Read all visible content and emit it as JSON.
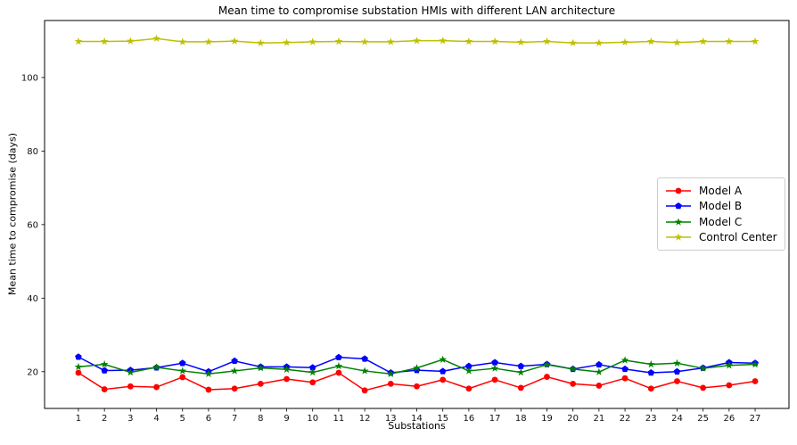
{
  "chart_data": {
    "type": "line",
    "title": "Mean time to compromise substation HMIs with different LAN architecture",
    "xlabel": "Substations",
    "ylabel": "Mean time to compromise (days)",
    "x": [
      1,
      2,
      3,
      4,
      5,
      6,
      7,
      8,
      9,
      10,
      11,
      12,
      13,
      14,
      15,
      16,
      17,
      18,
      19,
      20,
      21,
      22,
      23,
      24,
      25,
      26,
      27
    ],
    "xlim": [
      -0.3,
      28.3
    ],
    "ylim": [
      10,
      115.5
    ],
    "yticks": [
      20,
      40,
      60,
      80,
      100
    ],
    "grid": false,
    "legend_position": "center right",
    "legend_edge_color": "#cccccc",
    "background_color": "#ffffff",
    "axis_color": "#000000",
    "series": [
      {
        "name": "Model A",
        "color": "#ff0000",
        "marker": "circle",
        "values": [
          19.7,
          15.2,
          16.0,
          15.8,
          18.5,
          15.1,
          15.4,
          16.7,
          18.0,
          17.1,
          19.7,
          14.9,
          16.7,
          16.0,
          17.8,
          15.4,
          17.8,
          15.6,
          18.6,
          16.7,
          16.2,
          18.2,
          15.4,
          17.4,
          15.6,
          16.3,
          17.4
        ]
      },
      {
        "name": "Model B",
        "color": "#0000ff",
        "marker": "pentagon",
        "values": [
          24.0,
          20.3,
          20.4,
          21.1,
          22.3,
          20.0,
          22.9,
          21.3,
          21.3,
          21.1,
          23.9,
          23.5,
          19.7,
          20.4,
          20.1,
          21.5,
          22.5,
          21.5,
          22.0,
          20.7,
          21.9,
          20.7,
          19.7,
          20.0,
          21.0,
          22.5,
          22.3
        ]
      },
      {
        "name": "Model C",
        "color": "#008000",
        "marker": "star",
        "values": [
          21.3,
          22.0,
          19.8,
          21.2,
          20.2,
          19.4,
          20.2,
          21.0,
          20.6,
          19.8,
          21.5,
          20.2,
          19.4,
          21.0,
          23.3,
          20.2,
          20.9,
          19.8,
          21.9,
          20.7,
          19.9,
          23.1,
          22.0,
          22.3,
          20.9,
          21.7,
          22.0
        ]
      },
      {
        "name": "Control Center",
        "color": "#bfbf00",
        "marker": "star",
        "values": [
          109.8,
          109.8,
          109.9,
          110.6,
          109.7,
          109.7,
          109.9,
          109.4,
          109.5,
          109.7,
          109.8,
          109.7,
          109.7,
          110.0,
          110.0,
          109.8,
          109.8,
          109.6,
          109.8,
          109.4,
          109.4,
          109.6,
          109.8,
          109.5,
          109.8,
          109.8,
          109.8
        ]
      }
    ]
  }
}
